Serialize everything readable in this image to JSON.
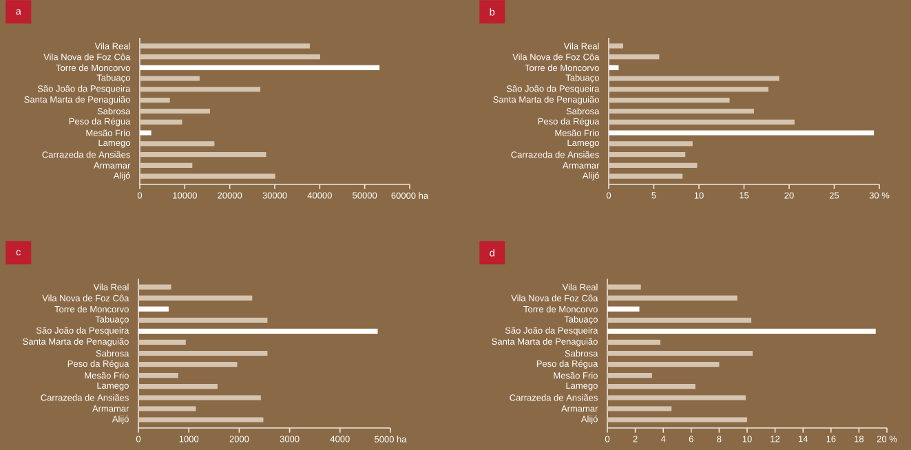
{
  "chart_data": [
    {
      "type": "bar",
      "orientation": "horizontal",
      "title": "a",
      "categories": [
        "Vila Real",
        "Vila Nova de Foz Côa",
        "Torre de Moncorvo",
        "Tabuaço",
        "São João da Pesqueira",
        "Santa Marta de Penaguião",
        "Sabrosa",
        "Peso da Régua",
        "Mesão Frio",
        "Lamego",
        "Carrazeda de Ansiães",
        "Armamar",
        "Alijó"
      ],
      "values": [
        37800,
        40100,
        53300,
        13300,
        26800,
        6700,
        15600,
        9400,
        2550,
        16600,
        28100,
        11700,
        30100
      ],
      "colors": [
        "#d4c4b0",
        "#d4c4b0",
        "#ffffff",
        "#d4c4b0",
        "#d4c4b0",
        "#d4c4b0",
        "#d4c4b0",
        "#d4c4b0",
        "#ffffff",
        "#d4c4b0",
        "#d4c4b0",
        "#d4c4b0",
        "#d4c4b0"
      ],
      "xlim": [
        0,
        60000
      ],
      "xticks": [
        0,
        10000,
        20000,
        30000,
        40000,
        50000,
        {
          "value": 60000,
          "label": "60000 ha"
        }
      ]
    },
    {
      "type": "bar",
      "orientation": "horizontal",
      "title": "b",
      "categories": [
        "Vila Real",
        "Vila Nova de Foz Côa",
        "Torre de Moncorvo",
        "Tabuaço",
        "São João da Pesqueira",
        "Santa Marta de Penaguião",
        "Sabrosa",
        "Peso da Régua",
        "Mesão Frio",
        "Lamego",
        "Carrazeda de Ansiães",
        "Armamar",
        "Alijó"
      ],
      "values": [
        1.6,
        5.6,
        1.1,
        18.9,
        17.7,
        13.4,
        16.1,
        20.6,
        29.4,
        9.3,
        8.5,
        9.8,
        8.2
      ],
      "colors": [
        "#d4c4b0",
        "#d4c4b0",
        "#ffffff",
        "#d4c4b0",
        "#d4c4b0",
        "#d4c4b0",
        "#d4c4b0",
        "#d4c4b0",
        "#ffffff",
        "#d4c4b0",
        "#d4c4b0",
        "#d4c4b0",
        "#d4c4b0"
      ],
      "xlim": [
        0,
        30
      ],
      "xticks": [
        0,
        5,
        10,
        15,
        20,
        25,
        {
          "value": 30,
          "label": "30 %"
        }
      ]
    },
    {
      "type": "bar",
      "orientation": "horizontal",
      "title": "c",
      "categories": [
        "Vila Real",
        "Vila Nova de Foz Côa",
        "Torre de Moncorvo",
        "Tabuaço",
        "São João da Pesqueira",
        "Santa Marta de Penaguião",
        "Sabrosa",
        "Peso da Régua",
        "Mesão Frio",
        "Lamego",
        "Carrazeda de Ansiães",
        "Armamar",
        "Alijó"
      ],
      "values": [
        650,
        2260,
        600,
        2560,
        4750,
        940,
        2560,
        1960,
        790,
        1570,
        2430,
        1140,
        2480
      ],
      "colors": [
        "#d4c4b0",
        "#d4c4b0",
        "#ffffff",
        "#d4c4b0",
        "#ffffff",
        "#d4c4b0",
        "#d4c4b0",
        "#d4c4b0",
        "#d4c4b0",
        "#d4c4b0",
        "#d4c4b0",
        "#d4c4b0",
        "#d4c4b0"
      ],
      "xlim": [
        0,
        5000
      ],
      "xticks": [
        0,
        1000,
        2000,
        3000,
        4000,
        {
          "value": 5000,
          "label": "5000 ha"
        }
      ]
    },
    {
      "type": "bar",
      "orientation": "horizontal",
      "title": "d",
      "categories": [
        "Vila Real",
        "Vila Nova de Foz Côa",
        "Torre de Moncorvo",
        "Tabuaço",
        "São João da Pesqueira",
        "Santa Marta de Penaguião",
        "Sabrosa",
        "Peso da Régua",
        "Mesão Frio",
        "Lamego",
        "Carrazeda de Ansiães",
        "Armamar",
        "Alijó"
      ],
      "values": [
        2.4,
        9.3,
        2.3,
        10.3,
        19.2,
        3.8,
        10.4,
        8.0,
        3.2,
        6.3,
        9.9,
        4.6,
        10.0
      ],
      "colors": [
        "#d4c4b0",
        "#d4c4b0",
        "#ffffff",
        "#d4c4b0",
        "#ffffff",
        "#d4c4b0",
        "#d4c4b0",
        "#d4c4b0",
        "#d4c4b0",
        "#d4c4b0",
        "#d4c4b0",
        "#d4c4b0",
        "#d4c4b0"
      ],
      "xlim": [
        0,
        20
      ],
      "xticks": [
        0,
        2,
        4,
        6,
        8,
        10,
        12,
        14,
        16,
        18,
        {
          "value": 20,
          "label": "20 %"
        }
      ]
    }
  ]
}
